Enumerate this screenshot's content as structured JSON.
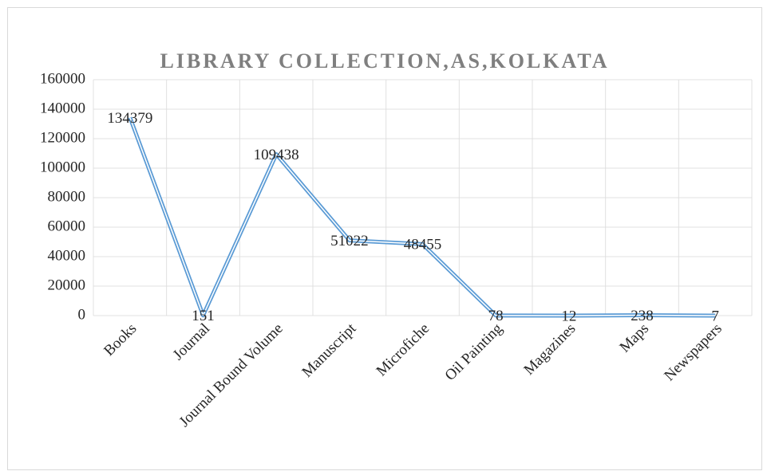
{
  "chart_data": {
    "type": "line",
    "title": "LIBRARY COLLECTION,AS,KOLKATA",
    "categories": [
      "Books",
      "Journal",
      "Journal Bound Volume",
      "Manuscript",
      "Microfiche",
      "Oil Painting",
      "Magazines",
      "Maps",
      "Newspapers"
    ],
    "values": [
      134379,
      151,
      109438,
      51022,
      48455,
      78,
      12,
      238,
      7
    ],
    "color": "#5b9bd5",
    "ylim": [
      0,
      160000
    ],
    "yticks": [
      0,
      20000,
      40000,
      60000,
      80000,
      100000,
      120000,
      140000,
      160000
    ],
    "grid": true
  }
}
